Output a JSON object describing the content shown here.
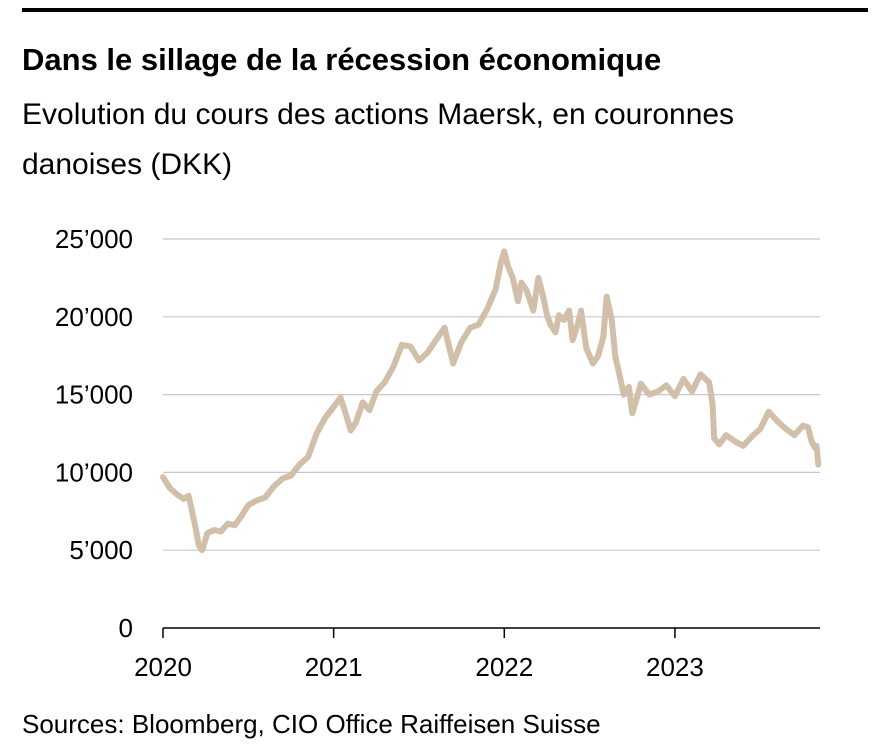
{
  "header": {
    "title": "Dans le sillage de la récession économique",
    "subtitle": "Evolution du cours des actions Maersk, en couronnes danoises (DKK)"
  },
  "footer": {
    "source": "Sources: Bloomberg, CIO Office Raiffeisen Suisse"
  },
  "chart_data": {
    "type": "line",
    "title": "Dans le sillage de la récession économique",
    "subtitle": "Evolution du cours des actions Maersk, en couronnes danoises (DKK)",
    "xlabel": "",
    "ylabel": "",
    "xlim": [
      2020.0,
      2023.85
    ],
    "ylim": [
      0,
      25000
    ],
    "x_ticks": [
      2020,
      2021,
      2022,
      2023
    ],
    "y_ticks": [
      0,
      5000,
      10000,
      15000,
      20000,
      25000
    ],
    "y_tick_labels": [
      "0",
      "5’000",
      "10’000",
      "15’000",
      "20’000",
      "25’000"
    ],
    "x_tick_labels": [
      "2020",
      "2021",
      "2022",
      "2023"
    ],
    "grid": "horizontal",
    "line_color": "#d2bfaa",
    "series": [
      {
        "x": [
          2020.0,
          2020.04,
          2020.08,
          2020.12,
          2020.15,
          2020.17,
          2020.19,
          2020.21,
          2020.23,
          2020.26,
          2020.3,
          2020.34,
          2020.38,
          2020.42,
          2020.46,
          2020.5,
          2020.55,
          2020.6,
          2020.65,
          2020.7,
          2020.75,
          2020.8,
          2020.85,
          2020.9,
          2020.95,
          2021.0,
          2021.04,
          2021.07,
          2021.1,
          2021.13,
          2021.17,
          2021.21,
          2021.25,
          2021.3,
          2021.35,
          2021.4,
          2021.45,
          2021.5,
          2021.55,
          2021.6,
          2021.65,
          2021.7,
          2021.75,
          2021.8,
          2021.85,
          2021.9,
          2021.95,
          2021.98,
          2022.0,
          2022.02,
          2022.05,
          2022.08,
          2022.1,
          2022.13,
          2022.17,
          2022.2,
          2022.23,
          2022.25,
          2022.27,
          2022.3,
          2022.32,
          2022.35,
          2022.38,
          2022.4,
          2022.43,
          2022.45,
          2022.48,
          2022.52,
          2022.55,
          2022.58,
          2022.6,
          2022.63,
          2022.65,
          2022.7,
          2022.73,
          2022.75,
          2022.78,
          2022.8,
          2022.85,
          2022.9,
          2022.95,
          2023.0,
          2023.05,
          2023.1,
          2023.15,
          2023.2,
          2023.22,
          2023.23,
          2023.26,
          2023.3,
          2023.35,
          2023.4,
          2023.45,
          2023.5,
          2023.55,
          2023.6,
          2023.65,
          2023.7,
          2023.75,
          2023.78,
          2023.8,
          2023.82,
          2023.83,
          2023.84
        ],
        "y": [
          9700,
          9000,
          8600,
          8300,
          8500,
          7500,
          6500,
          5300,
          5000,
          6100,
          6300,
          6200,
          6700,
          6600,
          7200,
          7900,
          8200,
          8400,
          9100,
          9600,
          9800,
          10500,
          11000,
          12500,
          13500,
          14200,
          14800,
          13800,
          12700,
          13200,
          14500,
          14000,
          15200,
          15800,
          16800,
          18200,
          18100,
          17200,
          17700,
          18500,
          19300,
          17000,
          18400,
          19300,
          19500,
          20500,
          21800,
          23500,
          24200,
          23300,
          22500,
          21000,
          22200,
          21700,
          20400,
          22500,
          21200,
          20100,
          19500,
          19000,
          20100,
          19800,
          20400,
          18500,
          19500,
          20400,
          18000,
          17000,
          17500,
          18700,
          21300,
          19800,
          17500,
          15000,
          15500,
          13800,
          14900,
          15700,
          15000,
          15200,
          15600,
          14900,
          16000,
          15200,
          16300,
          15800,
          14400,
          12200,
          11800,
          12400,
          12000,
          11700,
          12300,
          12800,
          13900,
          13300,
          12800,
          12400,
          13000,
          12900,
          12000,
          11600,
          11700,
          10500
        ]
      }
    ]
  }
}
